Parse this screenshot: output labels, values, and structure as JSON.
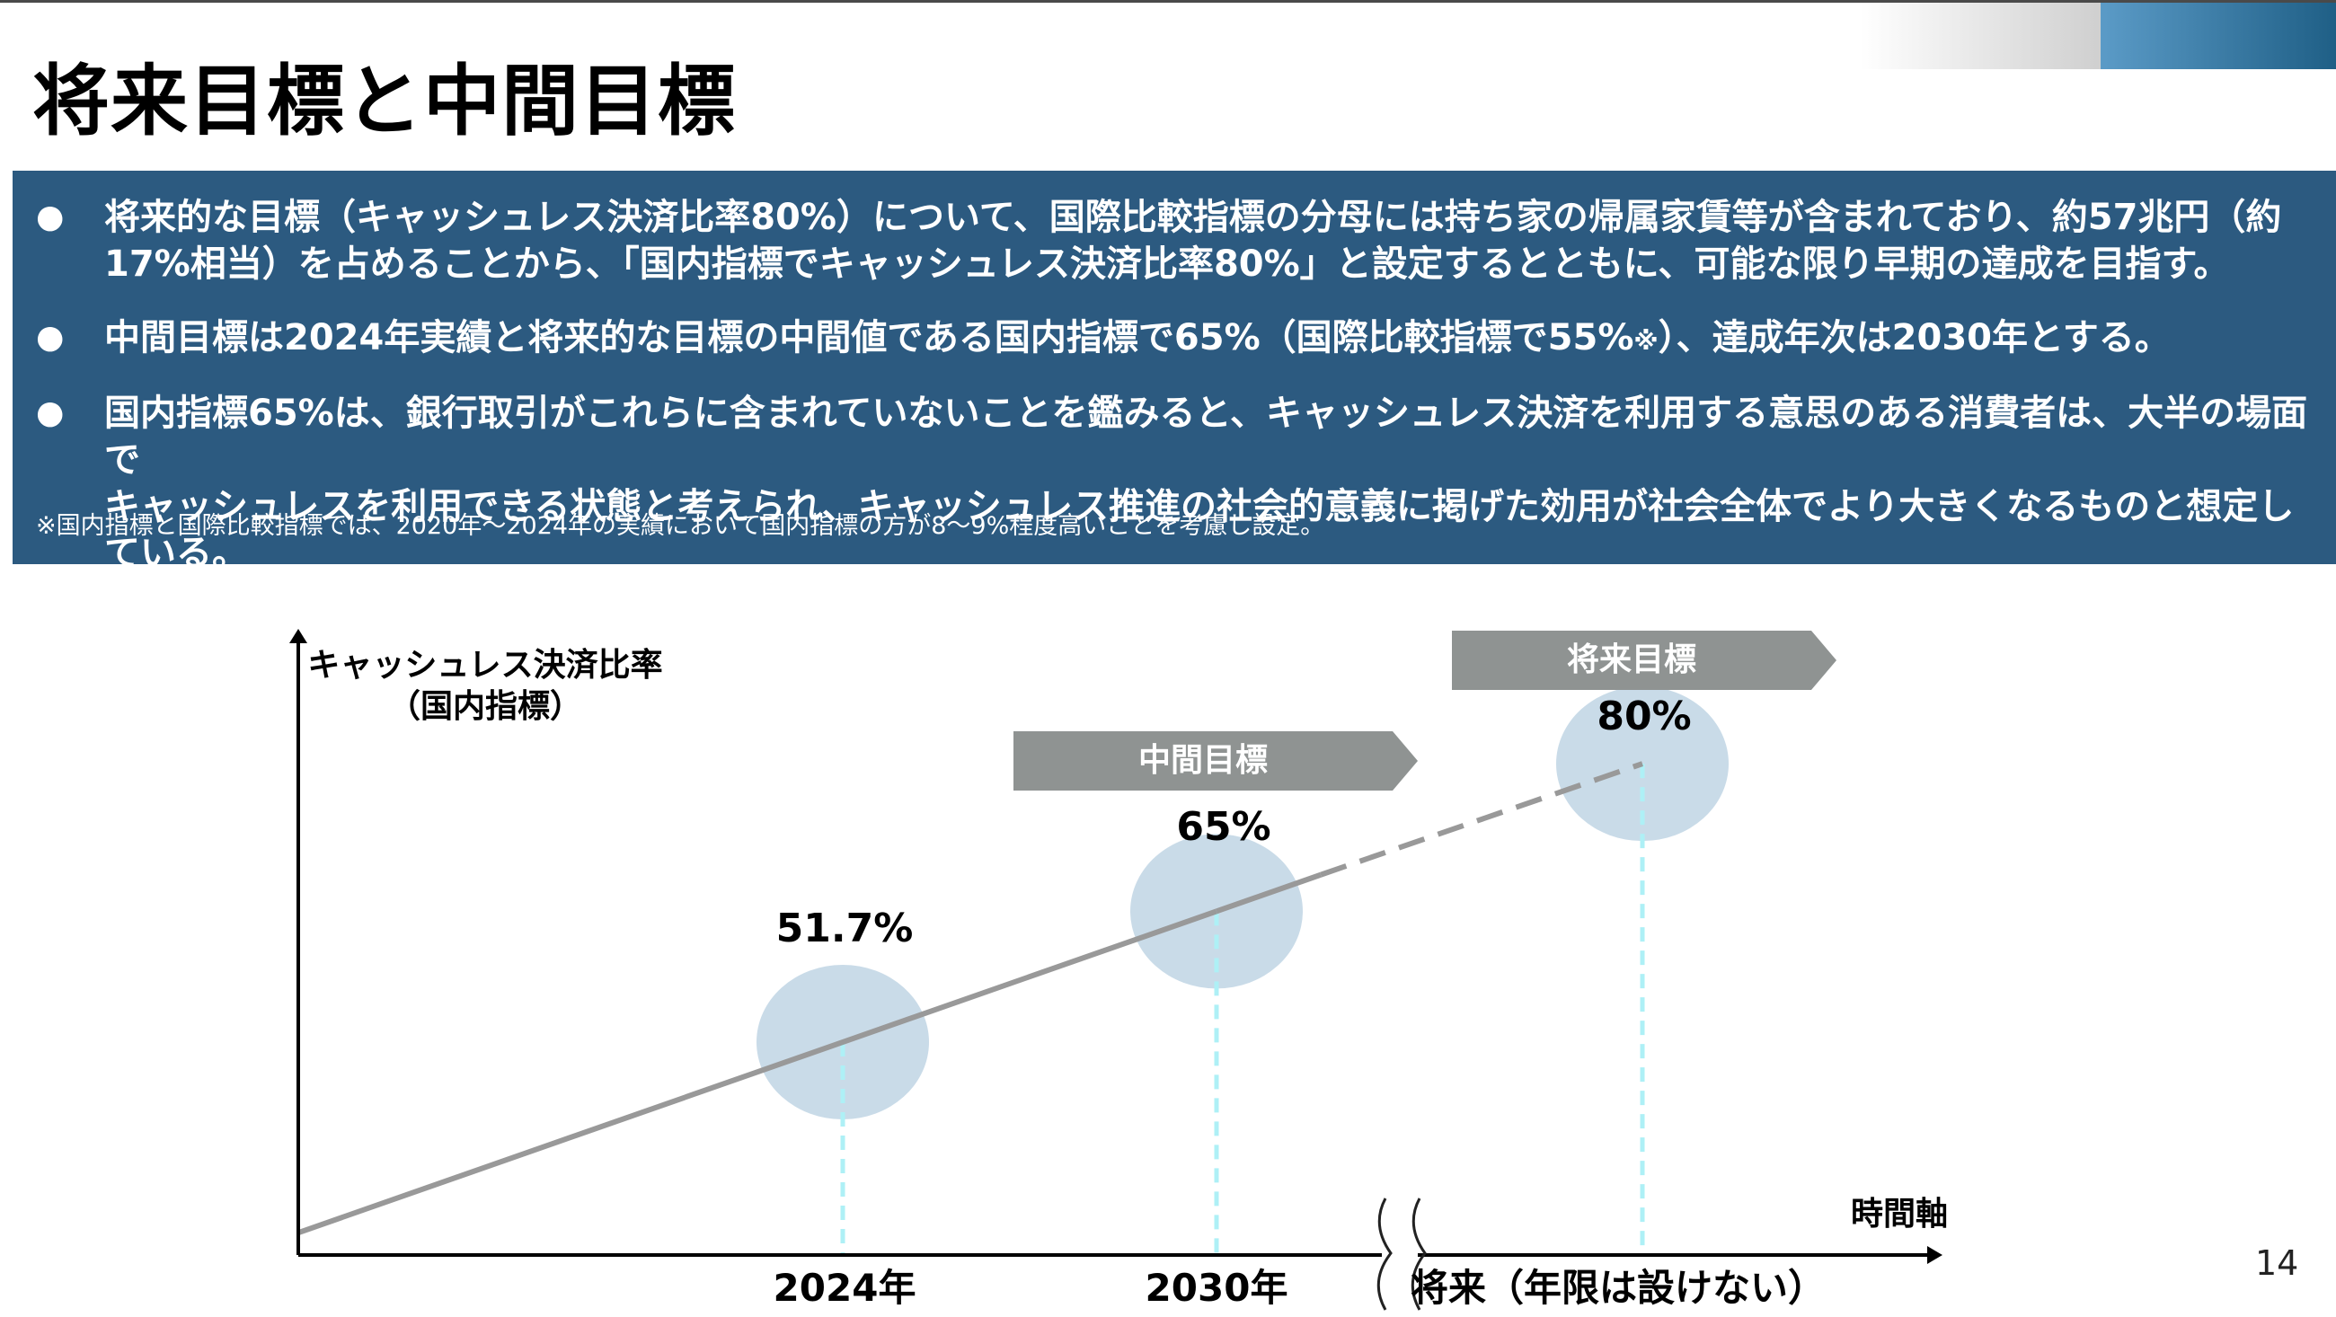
{
  "header": {
    "title": "将来目標と中間目標"
  },
  "summary": {
    "bullet_symbol": "●",
    "bullets": [
      {
        "line1": "将来的な目標（キャッシュレス決済比率80%）について、国際比較指標の分母には持ち家の帰属家賃等が含まれており、約57兆円（約",
        "line2": "17%相当）を占めることから、「国内指標でキャッシュレス決済比率80%」と設定するとともに、可能な限り早期の達成を目指す。"
      },
      {
        "line1_a": "中間目標は2024年実績と将来的な目標の中間値である国内指標で65%（国際比較指標で55%",
        "note_mark": "※",
        "line1_b": "）、達成年次は2030年とする。"
      },
      {
        "line1": "国内指標65%は、銀行取引がこれらに含まれていないことを鑑みると、キャッシュレス決済を利用する意思のある消費者は、大半の場面で",
        "line2": "キャッシュレスを利用できる状態と考えられ、キャッシュレス推進の社会的意義に掲げた効用が社会全体でより大きくなるものと想定している。"
      }
    ],
    "footnote": "※国内指標と国際比較指標では、2020年～2024年の実績において国内指標の方が8～9%程度高いことを考慮し設定。"
  },
  "chart_data": {
    "type": "line",
    "ylabel_line1": "キャッシュレス決済比率",
    "ylabel_line2": "（国内指標）",
    "xlabel": "時間軸",
    "categories": [
      "2024年",
      "2030年",
      "将来（年限は設けない）"
    ],
    "values": [
      51.7,
      65,
      80
    ],
    "value_labels": [
      "51.7%",
      "65%",
      "80%"
    ],
    "tags": [
      "",
      "中間目標",
      "将来目標"
    ],
    "segments": [
      {
        "from": 0,
        "to": 1,
        "style": "solid",
        "color": "#999999"
      },
      {
        "from": 1,
        "to": 2,
        "style": "dashed",
        "color": "#999999"
      }
    ],
    "highlight_color": "#c9dbe8",
    "guide_color": "#aef0f6"
  },
  "footer": {
    "page_number": "14"
  }
}
